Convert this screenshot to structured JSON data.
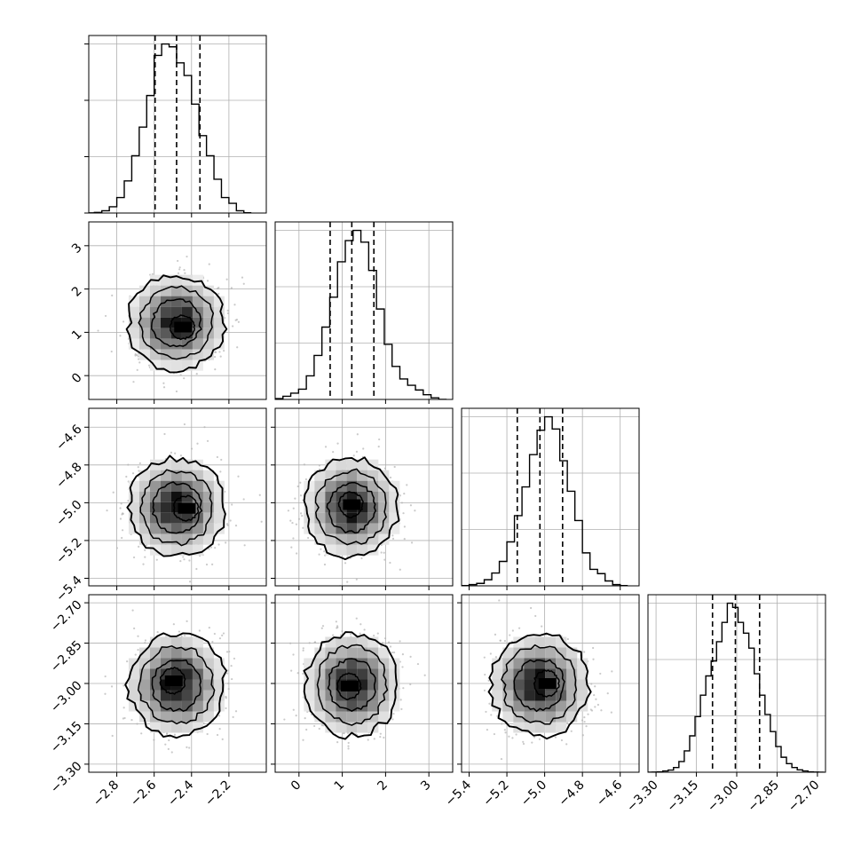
{
  "chart_data": {
    "type": "corner",
    "parameters": 4,
    "grid": true,
    "colors": {
      "line": "#000000",
      "grid": "#b0b0b0",
      "points": "#b4b4b4",
      "frame": "#000000"
    },
    "axes": [
      {
        "range": [
          -2.95,
          -2.0
        ],
        "ticks": [
          -2.8,
          -2.6,
          -2.4,
          -2.2
        ],
        "tick_labels": [
          "−2.8",
          "−2.6",
          "−2.4",
          "−2.2"
        ]
      },
      {
        "range": [
          -0.55,
          3.55
        ],
        "ticks": [
          0,
          1,
          2,
          3
        ],
        "tick_labels": [
          "0",
          "1",
          "2",
          "3"
        ]
      },
      {
        "range": [
          -5.44,
          -4.5
        ],
        "ticks": [
          -5.4,
          -5.2,
          -5.0,
          -4.8,
          -4.6
        ],
        "tick_labels": [
          "−5.4",
          "−5.2",
          "−5.0",
          "−4.8",
          "−4.6"
        ]
      },
      {
        "range": [
          -3.33,
          -2.67
        ],
        "ticks": [
          -3.3,
          -3.15,
          -3.0,
          -2.85,
          -2.7
        ],
        "tick_labels": [
          "−3.30",
          "−3.15",
          "−3.00",
          "−2.85",
          "−2.70"
        ]
      }
    ],
    "marginals": [
      {
        "param": 0,
        "quantiles": [
          -2.595,
          -2.48,
          -2.355
        ],
        "bin_edges": [
          -2.96,
          -2.92,
          -2.88,
          -2.84,
          -2.8,
          -2.76,
          -2.72,
          -2.68,
          -2.64,
          -2.6,
          -2.56,
          -2.52,
          -2.48,
          -2.44,
          -2.4,
          -2.36,
          -2.32,
          -2.28,
          -2.24,
          -2.2,
          -2.16,
          -2.12,
          -2.08
        ],
        "counts": [
          3,
          10,
          40,
          110,
          270,
          560,
          1000,
          1500,
          2050,
          2750,
          2950,
          2900,
          2620,
          2400,
          1900,
          1350,
          1000,
          590,
          270,
          170,
          40,
          5
        ]
      },
      {
        "param": 1,
        "quantiles": [
          0.72,
          1.22,
          1.73
        ],
        "bin_edges": [
          -0.55,
          -0.37,
          -0.19,
          -0.01,
          0.17,
          0.35,
          0.53,
          0.71,
          0.89,
          1.07,
          1.25,
          1.43,
          1.61,
          1.79,
          1.97,
          2.15,
          2.33,
          2.51,
          2.69,
          2.87,
          3.05,
          3.23,
          3.41
        ],
        "counts": [
          10,
          40,
          80,
          130,
          300,
          560,
          920,
          1300,
          1750,
          2020,
          2150,
          2000,
          1640,
          1150,
          700,
          420,
          260,
          180,
          120,
          60,
          20,
          0
        ]
      },
      {
        "param": 2,
        "quantiles": [
          -5.145,
          -5.025,
          -4.905
        ],
        "bin_edges": [
          -5.44,
          -5.4,
          -5.36,
          -5.32,
          -5.28,
          -5.24,
          -5.2,
          -5.16,
          -5.12,
          -5.08,
          -5.04,
          -5.0,
          -4.96,
          -4.92,
          -4.88,
          -4.84,
          -4.8,
          -4.76,
          -4.72,
          -4.68,
          -4.64,
          -4.6,
          -4.56
        ],
        "counts": [
          5,
          20,
          40,
          100,
          210,
          400,
          720,
          1150,
          1620,
          2150,
          2550,
          2770,
          2570,
          2050,
          1550,
          1070,
          540,
          270,
          200,
          80,
          20,
          5
        ]
      },
      {
        "param": 3,
        "quantiles": [
          -3.09,
          -3.005,
          -2.915
        ],
        "bin_edges": [
          -3.335,
          -3.315,
          -3.295,
          -3.275,
          -3.255,
          -3.235,
          -3.215,
          -3.195,
          -3.175,
          -3.155,
          -3.135,
          -3.115,
          -3.095,
          -3.075,
          -3.055,
          -3.035,
          -3.015,
          -2.995,
          -2.975,
          -2.955,
          -2.935,
          -2.915,
          -2.895,
          -2.875,
          -2.855,
          -2.835,
          -2.815,
          -2.795,
          -2.775,
          -2.755,
          -2.735,
          -2.715,
          -2.695,
          -2.675
        ],
        "counts": [
          0,
          5,
          20,
          60,
          100,
          220,
          500,
          1000,
          1700,
          2600,
          3600,
          4500,
          5200,
          6100,
          7000,
          7900,
          7700,
          7000,
          6500,
          5800,
          4600,
          3600,
          2700,
          1900,
          1200,
          700,
          400,
          220,
          110,
          60,
          20,
          5,
          0
        ]
      }
    ],
    "pairs": [
      {
        "x": 0,
        "y": 1,
        "center": [
          -2.48,
          1.22
        ],
        "sigma": [
          0.12,
          0.5
        ],
        "rho": -0.05,
        "peak": [
          -2.45,
          1.12
        ]
      },
      {
        "x": 0,
        "y": 2,
        "center": [
          -2.48,
          -5.025
        ],
        "sigma": [
          0.12,
          0.12
        ],
        "rho": 0.02,
        "peak": [
          -2.43,
          -5.03
        ]
      },
      {
        "x": 1,
        "y": 2,
        "center": [
          1.22,
          -5.025
        ],
        "sigma": [
          0.5,
          0.12
        ],
        "rho": 0.02,
        "peak": [
          1.2,
          -5.01
        ]
      },
      {
        "x": 0,
        "y": 3,
        "center": [
          -2.48,
          -3.005
        ],
        "sigma": [
          0.12,
          0.088
        ],
        "rho": 0.02,
        "peak": [
          -2.5,
          -2.99
        ]
      },
      {
        "x": 1,
        "y": 3,
        "center": [
          1.22,
          -3.005
        ],
        "sigma": [
          0.5,
          0.088
        ],
        "rho": 0.0,
        "peak": [
          1.15,
          -3.01
        ]
      },
      {
        "x": 2,
        "y": 3,
        "center": [
          -5.025,
          -3.005
        ],
        "sigma": [
          0.12,
          0.088
        ],
        "rho": 0.0,
        "peak": [
          -4.99,
          -3.0
        ]
      }
    ],
    "contour_levels_sigma": [
      0.5,
      1.0,
      1.5,
      2.0
    ]
  }
}
